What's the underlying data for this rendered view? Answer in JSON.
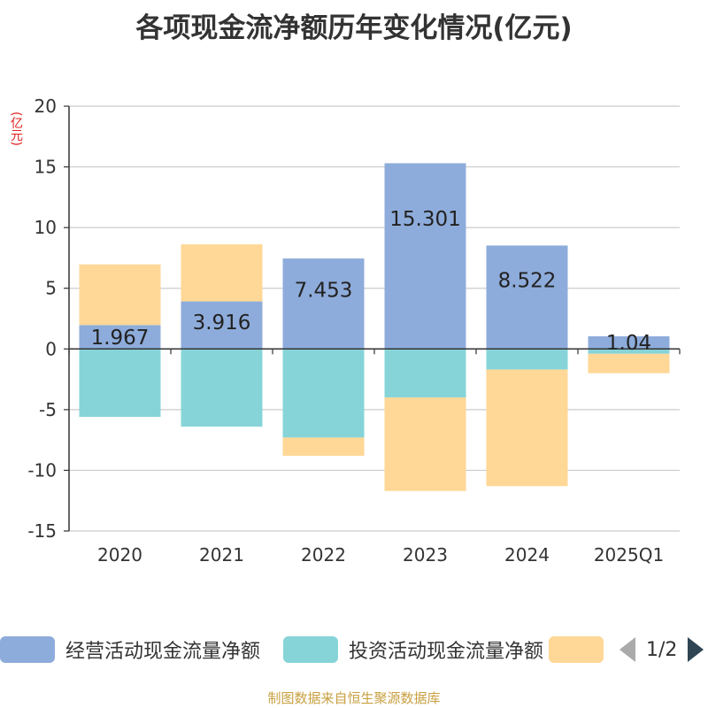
{
  "chart_data": {
    "type": "bar",
    "stacked": true,
    "title": "各项现金流净额历年变化情况(亿元)",
    "ylabel": "(亿元)",
    "xlabel": "",
    "ylim": [
      -15,
      20
    ],
    "yticks": [
      -15,
      -10,
      -5,
      0,
      5,
      10,
      15,
      20
    ],
    "categories": [
      "2020",
      "2021",
      "2022",
      "2023",
      "2024",
      "2025Q1"
    ],
    "series": [
      {
        "name": "经营活动现金流量净额",
        "color": "#8eacdb",
        "values": [
          1.967,
          3.916,
          7.453,
          15.301,
          8.522,
          1.04
        ],
        "labels": [
          "1.967",
          "3.916",
          "7.453",
          "15.301",
          "8.522",
          "1.04"
        ]
      },
      {
        "name": "投资活动现金流量净额",
        "color": "#86d4d8",
        "values": [
          -5.6,
          -6.4,
          -7.3,
          -4.0,
          -1.7,
          -0.4
        ]
      },
      {
        "name": "",
        "color": "#ffd796",
        "values": [
          5.0,
          4.7,
          -1.5,
          -7.7,
          -9.6,
          -1.6
        ]
      }
    ],
    "grid": true,
    "legend_position": "bottom"
  },
  "legend": {
    "items": [
      "经营活动现金流量净额",
      "投资活动现金流量净额",
      ""
    ],
    "page": "1/2"
  },
  "source": "制图数据来自恒生聚源数据库"
}
